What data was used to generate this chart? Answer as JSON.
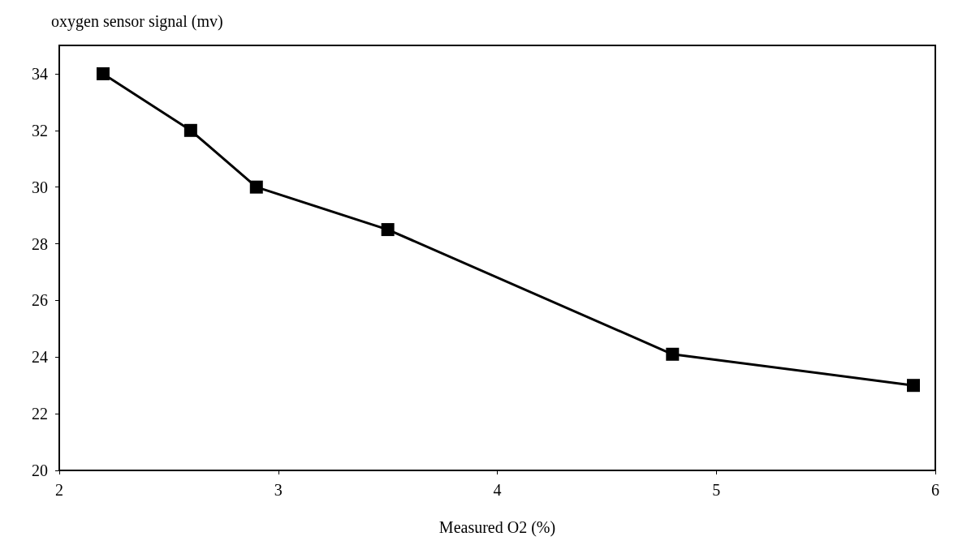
{
  "chart_data": {
    "type": "line",
    "ylabel": "oxygen sensor signal (mv)",
    "xlabel": "Measured O2 (%)",
    "x": [
      2.2,
      2.6,
      2.9,
      3.5,
      4.8,
      5.9
    ],
    "series": [
      {
        "color": "#000000",
        "values": [
          34,
          32,
          30,
          28.5,
          24.1,
          23.0
        ]
      }
    ],
    "xlim": [
      2,
      6
    ],
    "xticks": [
      2,
      3,
      4,
      5,
      6
    ],
    "ylim": [
      20,
      35
    ],
    "yticks": [
      20,
      22,
      24,
      26,
      28,
      30,
      32,
      34
    ],
    "grid": false,
    "marker": "square",
    "line_style": "solid"
  }
}
